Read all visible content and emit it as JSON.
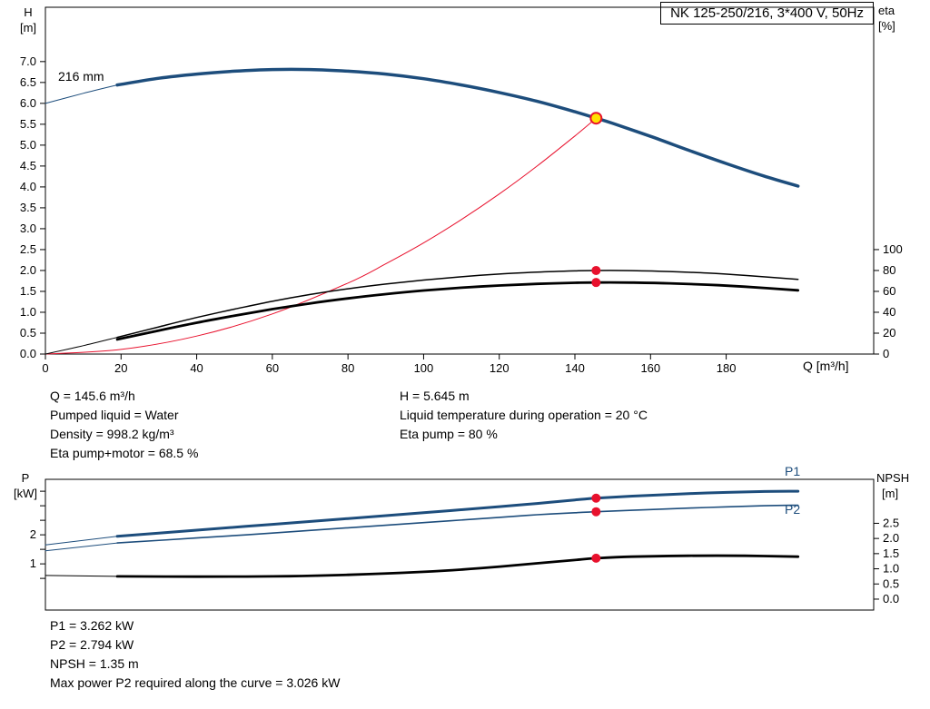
{
  "title": "NK 125-250/216, 3*400 V, 50Hz",
  "labels": {
    "h_axis": [
      "H",
      "[m]"
    ],
    "eta_axis": [
      "eta",
      "[%]"
    ],
    "q_axis": "Q [m³/h]",
    "p_axis": [
      "P",
      "[kW]"
    ],
    "npsh_axis": [
      "NPSH",
      "[m]"
    ],
    "impeller": "216 mm",
    "p1_curve": "P1",
    "p2_curve": "P2"
  },
  "conditions": {
    "left": [
      "Q = 145.6 m³/h",
      "Pumped liquid = Water",
      "Density = 998.2 kg/m³",
      "Eta pump+motor = 68.5 %"
    ],
    "right": [
      "H = 5.645 m",
      "Liquid temperature during operation = 20 °C",
      "Eta pump = 80 %"
    ]
  },
  "results": [
    "P1 = 3.262 kW",
    "P2 = 2.794 kW",
    "NPSH = 1.35 m",
    "Max power P2 required along the curve = 3.026 kW"
  ],
  "colors": {
    "curve_blue": "#1d4d7c",
    "red": "#e8112d",
    "black": "#000000",
    "duty_fill": "#ffe100"
  },
  "chart_data": [
    {
      "id": "head",
      "type": "line",
      "title": "QH and efficiency curves",
      "x": {
        "label": "Q [m³/h]",
        "min": 0,
        "max": 219,
        "decimals": 0,
        "ticks": [
          0,
          20,
          40,
          60,
          80,
          100,
          120,
          140,
          160,
          180
        ]
      },
      "y_left": {
        "label": "H [m]",
        "min": 0,
        "max": 8.3,
        "decimals": 1,
        "ticks": [
          0,
          0.5,
          1,
          1.5,
          2,
          2.5,
          3,
          3.5,
          4,
          4.5,
          5,
          5.5,
          6,
          6.5,
          7
        ]
      },
      "y_right": {
        "label": "eta [%]",
        "min": 0,
        "max": 332,
        "decimals": 0,
        "ticks": [
          0,
          20,
          40,
          60,
          80,
          100
        ]
      },
      "series": [
        {
          "name": "h-curve-lead",
          "axis": "left",
          "color": "curve_blue",
          "width": 1,
          "points": [
            [
              0,
              6.0
            ],
            [
              10,
              6.24
            ],
            [
              19,
              6.44
            ]
          ]
        },
        {
          "name": "h-curve",
          "axis": "left",
          "color": "curve_blue",
          "width": 3.5,
          "points": [
            [
              19,
              6.44
            ],
            [
              30,
              6.6
            ],
            [
              40,
              6.7
            ],
            [
              50,
              6.77
            ],
            [
              60,
              6.81
            ],
            [
              70,
              6.81
            ],
            [
              80,
              6.77
            ],
            [
              90,
              6.7
            ],
            [
              100,
              6.59
            ],
            [
              110,
              6.44
            ],
            [
              120,
              6.26
            ],
            [
              130,
              6.05
            ],
            [
              140,
              5.8
            ],
            [
              145.6,
              5.645
            ],
            [
              150,
              5.52
            ],
            [
              160,
              5.21
            ],
            [
              170,
              4.88
            ],
            [
              180,
              4.56
            ],
            [
              190,
              4.26
            ],
            [
              199,
              4.02
            ]
          ]
        },
        {
          "name": "duty-parabola",
          "axis": "left",
          "color": "red",
          "width": 1,
          "points": [
            [
              0,
              0
            ],
            [
              20,
              0.11
            ],
            [
              40,
              0.43
            ],
            [
              60,
              0.96
            ],
            [
              80,
              1.7
            ],
            [
              90,
              2.16
            ],
            [
              100,
              2.66
            ],
            [
              110,
              3.22
            ],
            [
              120,
              3.83
            ],
            [
              130,
              4.5
            ],
            [
              140,
              5.22
            ],
            [
              145.6,
              5.645
            ]
          ]
        },
        {
          "name": "eta-pump-lead",
          "axis": "right",
          "color": "black",
          "width": 1,
          "points": [
            [
              0,
              0
            ],
            [
              10,
              8
            ],
            [
              19,
              16
            ]
          ]
        },
        {
          "name": "eta-pump-curve",
          "axis": "right",
          "color": "black",
          "width": 1.5,
          "points": [
            [
              19,
              16
            ],
            [
              30,
              26
            ],
            [
              40,
              35
            ],
            [
              50,
              43
            ],
            [
              60,
              50.5
            ],
            [
              70,
              57
            ],
            [
              80,
              62.5
            ],
            [
              90,
              67
            ],
            [
              100,
              70.8
            ],
            [
              110,
              74
            ],
            [
              120,
              76.6
            ],
            [
              130,
              78.4
            ],
            [
              140,
              79.6
            ],
            [
              145.6,
              80
            ],
            [
              155,
              79.9
            ],
            [
              165,
              79
            ],
            [
              175,
              77.5
            ],
            [
              185,
              75.3
            ],
            [
              199,
              71.5
            ]
          ]
        },
        {
          "name": "eta-pump-motor-curve",
          "axis": "right",
          "color": "black",
          "width": 2.8,
          "points": [
            [
              19,
              14
            ],
            [
              30,
              22.5
            ],
            [
              40,
              30
            ],
            [
              50,
              36.8
            ],
            [
              60,
              43
            ],
            [
              70,
              48.5
            ],
            [
              80,
              53.3
            ],
            [
              90,
              57.4
            ],
            [
              100,
              60.8
            ],
            [
              110,
              63.5
            ],
            [
              120,
              65.6
            ],
            [
              130,
              67.2
            ],
            [
              140,
              68.2
            ],
            [
              145.6,
              68.5
            ],
            [
              155,
              68.4
            ],
            [
              165,
              67.7
            ],
            [
              175,
              66.4
            ],
            [
              185,
              64.5
            ],
            [
              199,
              61
            ]
          ]
        }
      ],
      "markers": [
        {
          "name": "eta-pump-dot",
          "x": 145.6,
          "y": 80,
          "axis": "right",
          "r": 5,
          "fill": "red"
        },
        {
          "name": "eta-pump-motor-dot",
          "x": 145.6,
          "y": 68.5,
          "axis": "right",
          "r": 5,
          "fill": "red"
        },
        {
          "name": "duty-point",
          "x": 145.6,
          "y": 5.645,
          "axis": "left",
          "r": 6,
          "fill": "duty_fill",
          "stroke": "red",
          "stroke_width": 2
        }
      ]
    },
    {
      "id": "power",
      "type": "line",
      "title": "Power and NPSH curves",
      "x": {
        "label": "",
        "min": 0,
        "max": 219,
        "decimals": 0,
        "ticks": []
      },
      "y_left": {
        "label": "P [kW]",
        "min": -0.59,
        "max": 3.91,
        "decimals": 0,
        "ticks": [
          0.5,
          1,
          1.5,
          2,
          2.5,
          3,
          3.5
        ],
        "labeled": [
          1,
          2
        ]
      },
      "y_right": {
        "label": "NPSH [m]",
        "min": -0.36,
        "max": 3.95,
        "decimals": 1,
        "ticks": [
          0,
          0.5,
          1,
          1.5,
          2,
          2.5
        ]
      },
      "series": [
        {
          "name": "p1-lead",
          "axis": "left",
          "color": "curve_blue",
          "width": 1,
          "points": [
            [
              0,
              1.65
            ],
            [
              19,
              1.95
            ]
          ]
        },
        {
          "name": "p1-curve",
          "axis": "left",
          "color": "curve_blue",
          "width": 3,
          "points": [
            [
              19,
              1.95
            ],
            [
              40,
              2.16
            ],
            [
              60,
              2.36
            ],
            [
              80,
              2.56
            ],
            [
              100,
              2.76
            ],
            [
              120,
              2.97
            ],
            [
              130,
              3.08
            ],
            [
              140,
              3.2
            ],
            [
              145.6,
              3.262
            ],
            [
              160,
              3.36
            ],
            [
              175,
              3.44
            ],
            [
              190,
              3.49
            ],
            [
              199,
              3.5
            ]
          ]
        },
        {
          "name": "p2-lead",
          "axis": "left",
          "color": "curve_blue",
          "width": 1,
          "points": [
            [
              0,
              1.45
            ],
            [
              19,
              1.72
            ]
          ]
        },
        {
          "name": "p2-curve",
          "axis": "left",
          "color": "curve_blue",
          "width": 1.6,
          "points": [
            [
              19,
              1.72
            ],
            [
              40,
              1.89
            ],
            [
              60,
              2.06
            ],
            [
              80,
              2.24
            ],
            [
              100,
              2.42
            ],
            [
              120,
              2.6
            ],
            [
              130,
              2.69
            ],
            [
              140,
              2.76
            ],
            [
              145.6,
              2.794
            ],
            [
              160,
              2.87
            ],
            [
              175,
              2.94
            ],
            [
              190,
              3.0
            ],
            [
              199,
              3.02
            ]
          ]
        },
        {
          "name": "npsh-lead",
          "axis": "right",
          "color": "black",
          "width": 1,
          "points": [
            [
              0,
              0.78
            ],
            [
              19,
              0.75
            ]
          ]
        },
        {
          "name": "npsh-curve",
          "axis": "right",
          "color": "black",
          "width": 2.8,
          "points": [
            [
              19,
              0.75
            ],
            [
              40,
              0.74
            ],
            [
              60,
              0.75
            ],
            [
              80,
              0.8
            ],
            [
              100,
              0.9
            ],
            [
              115,
              1.02
            ],
            [
              130,
              1.18
            ],
            [
              140,
              1.29
            ],
            [
              145.6,
              1.35
            ],
            [
              155,
              1.4
            ],
            [
              170,
              1.43
            ],
            [
              185,
              1.43
            ],
            [
              199,
              1.4
            ]
          ]
        }
      ],
      "markers": [
        {
          "name": "p1-dot",
          "x": 145.6,
          "y": 3.262,
          "axis": "left",
          "r": 5,
          "fill": "red"
        },
        {
          "name": "p2-dot",
          "x": 145.6,
          "y": 2.794,
          "axis": "left",
          "r": 5,
          "fill": "red"
        },
        {
          "name": "npsh-dot",
          "x": 145.6,
          "y": 1.35,
          "axis": "right",
          "r": 5,
          "fill": "red"
        }
      ]
    }
  ]
}
